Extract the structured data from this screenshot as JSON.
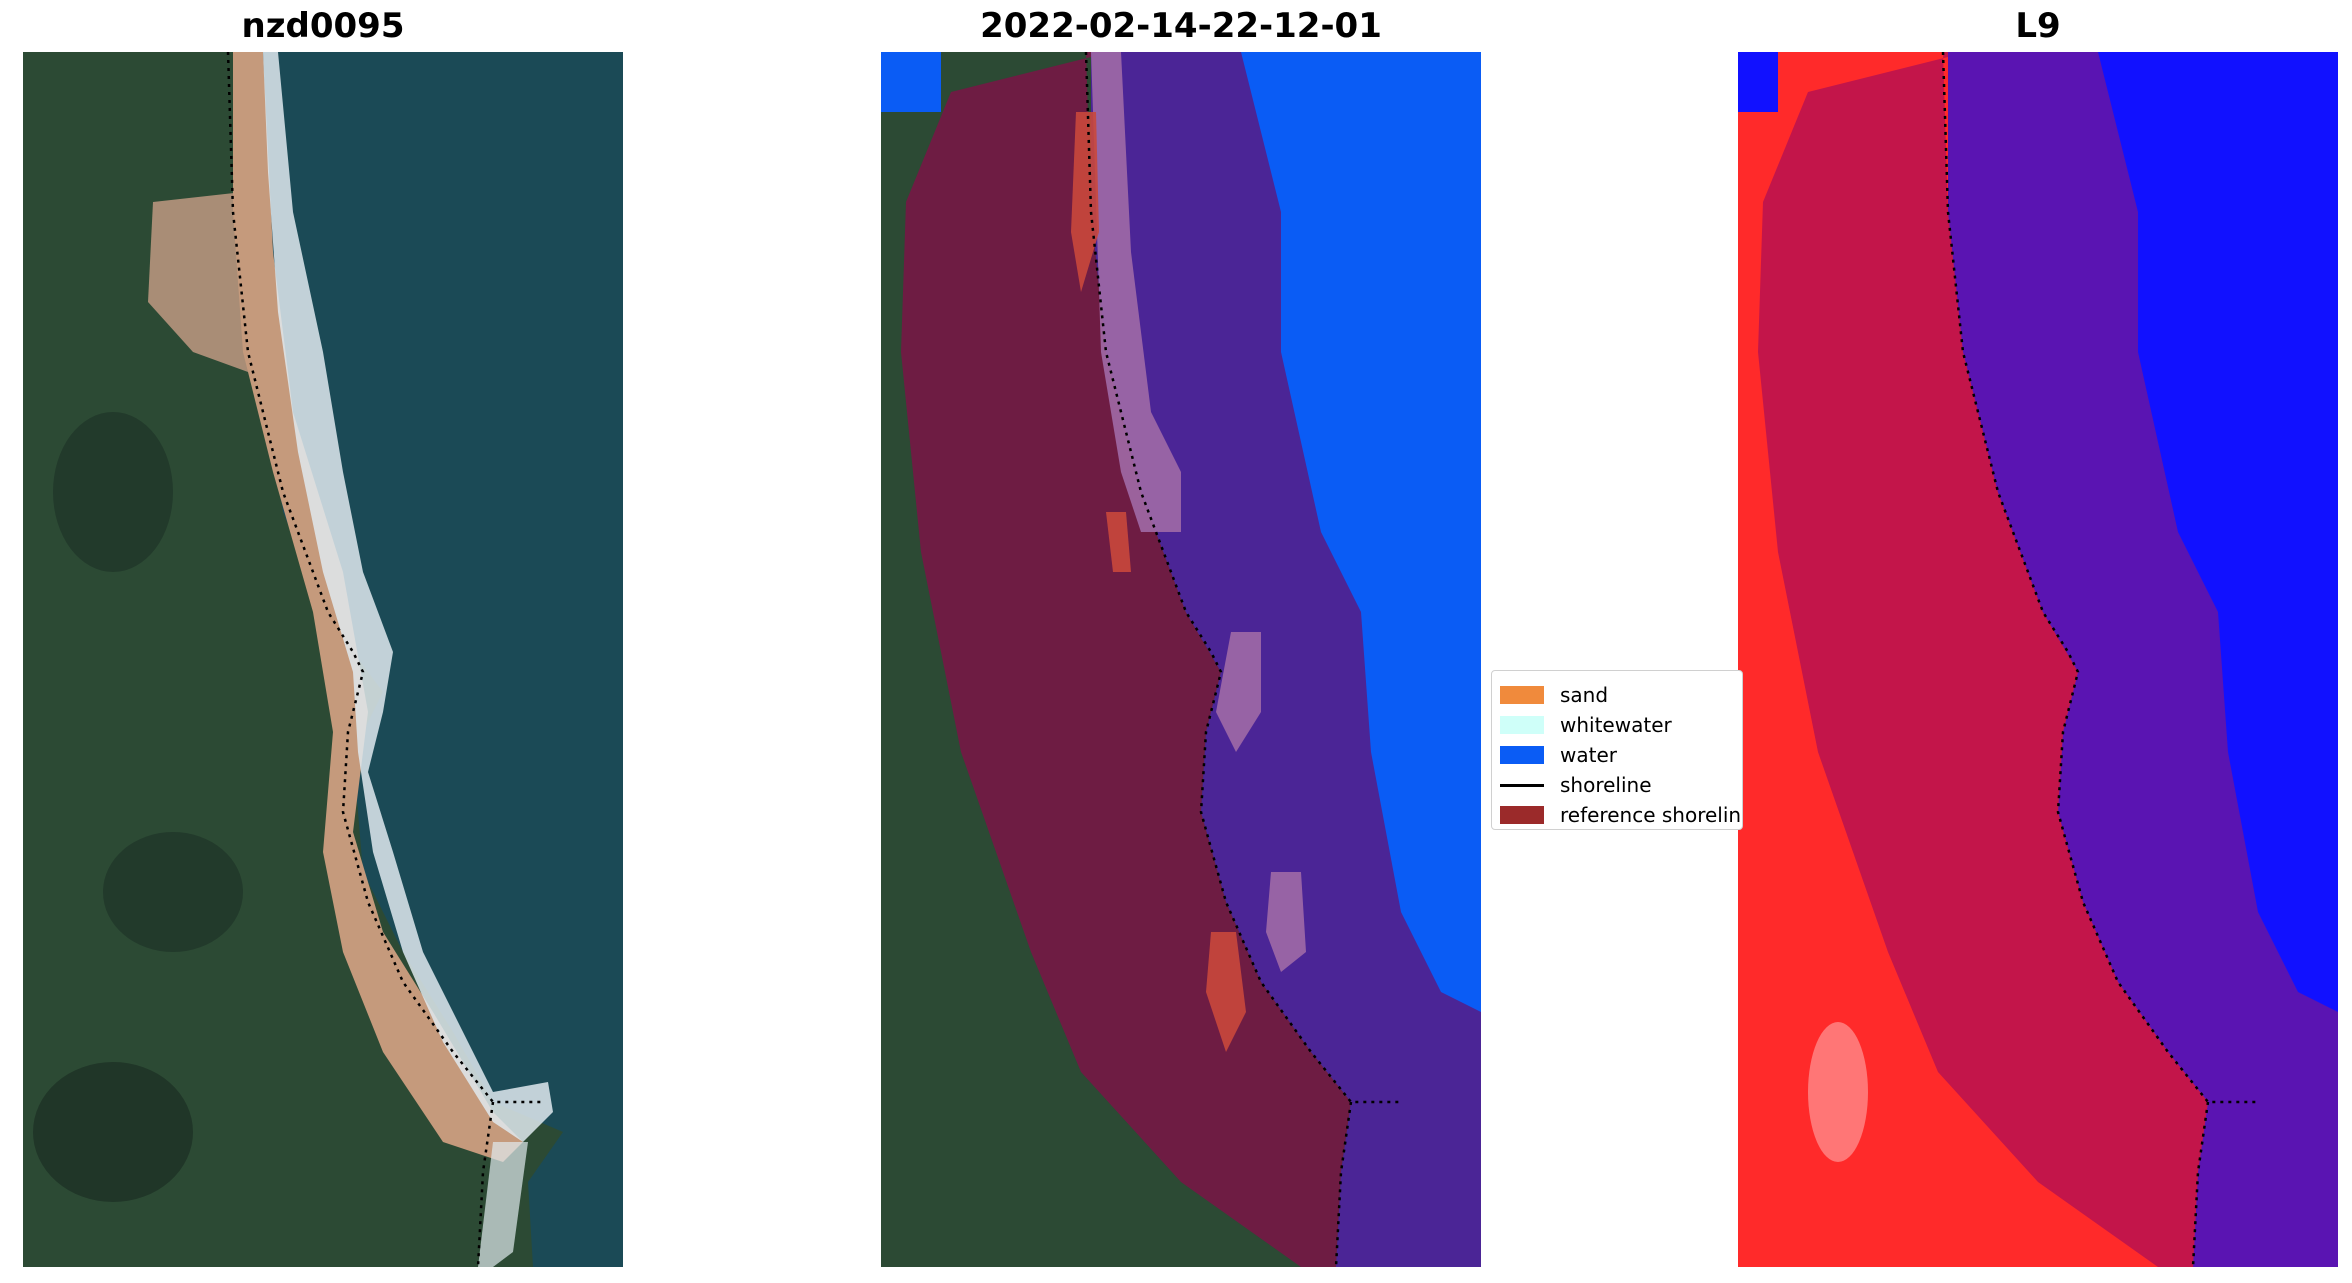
{
  "panels": [
    {
      "title": "nzd0095"
    },
    {
      "title": "2022-02-14-22-12-01"
    },
    {
      "title": "L9"
    }
  ],
  "legend": {
    "items": [
      {
        "label": "sand",
        "kind": "patch",
        "color": "#f08a3c"
      },
      {
        "label": "whitewater",
        "kind": "patch",
        "color": "#cffff9"
      },
      {
        "label": "water",
        "kind": "patch",
        "color": "#0a5cf5"
      },
      {
        "label": "shoreline",
        "kind": "line",
        "color": "#000000"
      },
      {
        "label": "reference shoreline",
        "kind": "patch",
        "color": "#9b2a2a"
      }
    ]
  },
  "colors": {
    "land": "#2c4a34",
    "sea": "#1b4a56",
    "sand_beach": "#c59a7c",
    "surf": "#dfe9ee",
    "ref_buffer_land": "#6e1c43",
    "ref_buffer_sea": "#4b2596",
    "water_class": "#0a5cf5",
    "ndwi_land": "#ff2a2a",
    "ndwi_buffer_land": "#c3154a",
    "ndwi_buffer_sea": "#5a14b2",
    "ndwi_water": "#1111ff"
  }
}
